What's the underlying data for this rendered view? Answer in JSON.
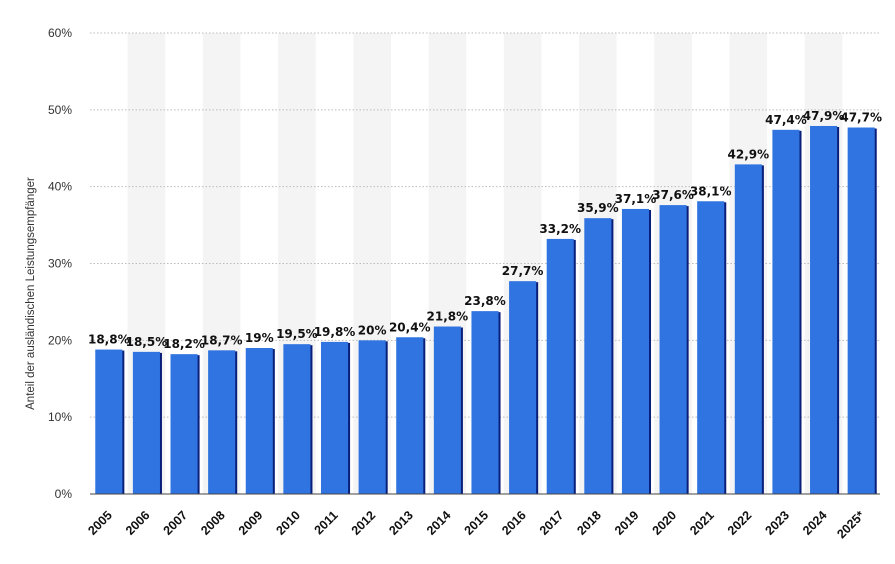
{
  "chart_data": {
    "type": "bar",
    "title": "",
    "xlabel": "",
    "ylabel": "Anteil der ausländischen Leistungsempfänger",
    "ylim": [
      0,
      60
    ],
    "yticks": [
      0,
      10,
      20,
      30,
      40,
      50,
      60
    ],
    "ytick_labels": [
      "0%",
      "10%",
      "20%",
      "30%",
      "40%",
      "50%",
      "60%"
    ],
    "categories": [
      "2005",
      "2006",
      "2007",
      "2008",
      "2009",
      "2010",
      "2011",
      "2012",
      "2013",
      "2014",
      "2015",
      "2016",
      "2017",
      "2018",
      "2019",
      "2020",
      "2021",
      "2022",
      "2023",
      "2024",
      "2025*"
    ],
    "values": [
      18.8,
      18.5,
      18.2,
      18.7,
      19,
      19.5,
      19.8,
      20,
      20.4,
      21.8,
      23.8,
      27.7,
      33.2,
      35.9,
      37.1,
      37.6,
      38.1,
      42.9,
      47.4,
      47.9,
      47.7
    ],
    "data_labels": [
      "18,8%",
      "18,5%",
      "18,2%",
      "18,7%",
      "19%",
      "19,5%",
      "19,8%",
      "20%",
      "20,4%",
      "21,8%",
      "23,8%",
      "27,7%",
      "33,2%",
      "35,9%",
      "37,1%",
      "37,6%",
      "38,1%",
      "42,9%",
      "47,4%",
      "47,9%",
      "47,7%"
    ],
    "grid": true,
    "legend": "none",
    "colors": {
      "bar": "#2f74e0",
      "bar_shadow": "#0a1f7a",
      "band": "#f4f4f4",
      "grid": "#bbbbbb"
    }
  }
}
